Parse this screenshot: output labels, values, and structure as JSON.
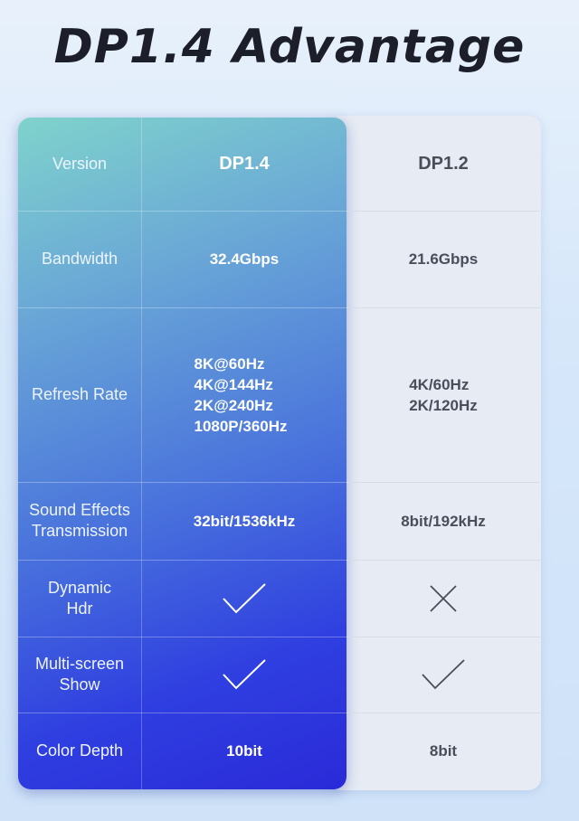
{
  "title": "DP1.4 Advantage",
  "colors": {
    "dp14_gradient_start": "#7fd3cc",
    "dp14_gradient_end": "#2a2ad8",
    "dp12_panel": "#e6ebf4"
  },
  "rows": [
    {
      "label": "Version",
      "dp14": "DP1.4",
      "dp12": "DP1.2"
    },
    {
      "label": "Bandwidth",
      "dp14": "32.4Gbps",
      "dp12": "21.6Gbps"
    },
    {
      "label": "Refresh Rate",
      "dp14_lines": [
        "8K@60Hz",
        "4K@144Hz",
        "2K@240Hz",
        "1080P/360Hz"
      ],
      "dp12_lines": [
        "4K/60Hz",
        "2K/120Hz"
      ]
    },
    {
      "label_lines": [
        "Sound Effects",
        "Transmission"
      ],
      "dp14": "32bit/1536kHz",
      "dp12": "8bit/192kHz"
    },
    {
      "label_lines": [
        "Dynamic",
        "Hdr"
      ],
      "dp14_icon": "check-icon",
      "dp12_icon": "cross-icon"
    },
    {
      "label_lines": [
        "Multi-screen",
        "Show"
      ],
      "dp14_icon": "check-icon",
      "dp12_icon": "check-icon"
    },
    {
      "label": "Color Depth",
      "dp14": "10bit",
      "dp12": "8bit"
    }
  ]
}
